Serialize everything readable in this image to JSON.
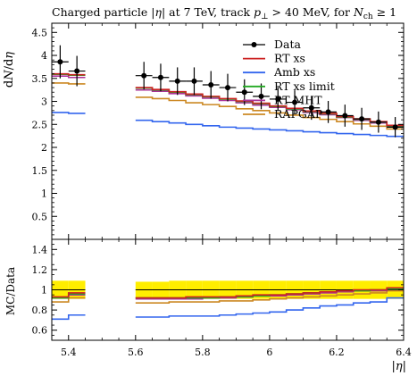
{
  "chart_data": {
    "type": "line",
    "title": "Charged particle |η| at 7 TeV, track p⊥ > 40 MeV, for Nch ≥ 1",
    "title_parts": {
      "prefix": "Charged particle |",
      "eta": "η",
      "mid": "| at 7 TeV, track ",
      "p": "p",
      "perp": "⊥",
      "cut": " > 40 MeV, for ",
      "n": "N",
      "ch": "ch",
      "suffix": " ≥ 1"
    },
    "ylabel": "dN/dη",
    "ylabel_parts": {
      "d1": "d",
      "n": "N",
      "slash": "/d",
      "eta": "η"
    },
    "ratio_ylabel": "MC/Data",
    "xlabel": "|η|",
    "xlim": [
      5.35,
      6.4
    ],
    "ylim": [
      0,
      4.7
    ],
    "ratio_ylim": [
      0.5,
      1.5
    ],
    "xticks": [
      "5.4",
      "5.6",
      "5.8",
      "6",
      "6.2",
      "6.4"
    ],
    "yticks": [
      "0.5",
      "1",
      "1.5",
      "2",
      "2.5",
      "3",
      "3.5",
      "4",
      "4.5"
    ],
    "ratio_yticks": [
      "0.6",
      "0.8",
      "1",
      "1.2",
      "1.4"
    ],
    "bin_edges": [
      5.35,
      5.4,
      5.45,
      5.6,
      5.65,
      5.7,
      5.75,
      5.8,
      5.85,
      5.9,
      5.95,
      6.0,
      6.05,
      6.1,
      6.15,
      6.2,
      6.25,
      6.3,
      6.35,
      6.4
    ],
    "legend_position": "top-right",
    "data": {
      "name": "Data",
      "x": [
        5.375,
        5.425,
        5.625,
        5.675,
        5.725,
        5.775,
        5.825,
        5.875,
        5.925,
        5.975,
        6.025,
        6.075,
        6.125,
        6.175,
        6.225,
        6.275,
        6.325,
        6.375
      ],
      "y": [
        3.86,
        3.66,
        3.56,
        3.52,
        3.44,
        3.44,
        3.36,
        3.3,
        3.2,
        3.11,
        3.05,
        2.98,
        2.86,
        2.77,
        2.69,
        2.62,
        2.55,
        2.44
      ],
      "yerr": [
        0.36,
        0.33,
        0.3,
        0.3,
        0.3,
        0.3,
        0.3,
        0.3,
        0.28,
        0.28,
        0.26,
        0.26,
        0.26,
        0.24,
        0.24,
        0.24,
        0.23,
        0.22
      ]
    },
    "series": [
      {
        "name": "RT xs",
        "color": "#cc2222",
        "values": [
          3.6,
          3.58,
          3.3,
          3.26,
          3.21,
          3.16,
          3.11,
          3.06,
          3.01,
          2.96,
          2.9,
          2.85,
          2.79,
          2.74,
          2.67,
          2.62,
          2.56,
          2.48
        ],
        "ratio": [
          0.93,
          0.97,
          0.92,
          0.92,
          0.92,
          0.93,
          0.93,
          0.93,
          0.94,
          0.95,
          0.95,
          0.96,
          0.97,
          0.98,
          0.99,
          1.0,
          1.0,
          1.02
        ]
      },
      {
        "name": "Amb xs",
        "color": "#3366ee",
        "values": [
          2.76,
          2.74,
          2.59,
          2.56,
          2.53,
          2.5,
          2.47,
          2.44,
          2.42,
          2.4,
          2.38,
          2.36,
          2.34,
          2.32,
          2.3,
          2.28,
          2.26,
          2.24
        ],
        "ratio": [
          0.71,
          0.75,
          0.73,
          0.73,
          0.74,
          0.74,
          0.74,
          0.75,
          0.76,
          0.77,
          0.78,
          0.8,
          0.82,
          0.84,
          0.85,
          0.87,
          0.88,
          0.92
        ]
      },
      {
        "name": "RT xs limit",
        "color": "#22aa22",
        "values": [
          3.59,
          3.57,
          3.29,
          3.25,
          3.2,
          3.15,
          3.1,
          3.05,
          3.0,
          2.95,
          2.89,
          2.84,
          2.78,
          2.73,
          2.66,
          2.61,
          2.55,
          2.47
        ],
        "ratio": [
          0.92,
          0.96,
          0.92,
          0.92,
          0.92,
          0.92,
          0.92,
          0.93,
          0.93,
          0.94,
          0.95,
          0.96,
          0.97,
          0.98,
          0.99,
          0.99,
          1.0,
          1.01
        ]
      },
      {
        "name": "RT MHT",
        "color": "#aa3399",
        "values": [
          3.55,
          3.52,
          3.25,
          3.22,
          3.17,
          3.12,
          3.07,
          3.02,
          2.97,
          2.92,
          2.87,
          2.82,
          2.76,
          2.71,
          2.65,
          2.59,
          2.53,
          2.45
        ],
        "ratio": [
          0.92,
          0.95,
          0.91,
          0.91,
          0.91,
          0.91,
          0.92,
          0.92,
          0.93,
          0.94,
          0.94,
          0.95,
          0.96,
          0.97,
          0.98,
          0.99,
          0.99,
          1.01
        ]
      },
      {
        "name": "RAPGAP",
        "color": "#cc8822",
        "values": [
          3.4,
          3.38,
          3.09,
          3.06,
          3.02,
          2.97,
          2.93,
          2.89,
          2.84,
          2.8,
          2.75,
          2.7,
          2.65,
          2.61,
          2.56,
          2.51,
          2.46,
          2.4
        ],
        "ratio": [
          0.88,
          0.92,
          0.87,
          0.87,
          0.88,
          0.88,
          0.88,
          0.89,
          0.89,
          0.9,
          0.91,
          0.92,
          0.93,
          0.94,
          0.95,
          0.96,
          0.97,
          0.99
        ]
      }
    ],
    "band_color": "#ffee00",
    "band_halfwidth": [
      0.09,
      0.09,
      0.08,
      0.08,
      0.09,
      0.09,
      0.09,
      0.09,
      0.09,
      0.09,
      0.09,
      0.09,
      0.09,
      0.09,
      0.09,
      0.09,
      0.09,
      0.09
    ]
  }
}
